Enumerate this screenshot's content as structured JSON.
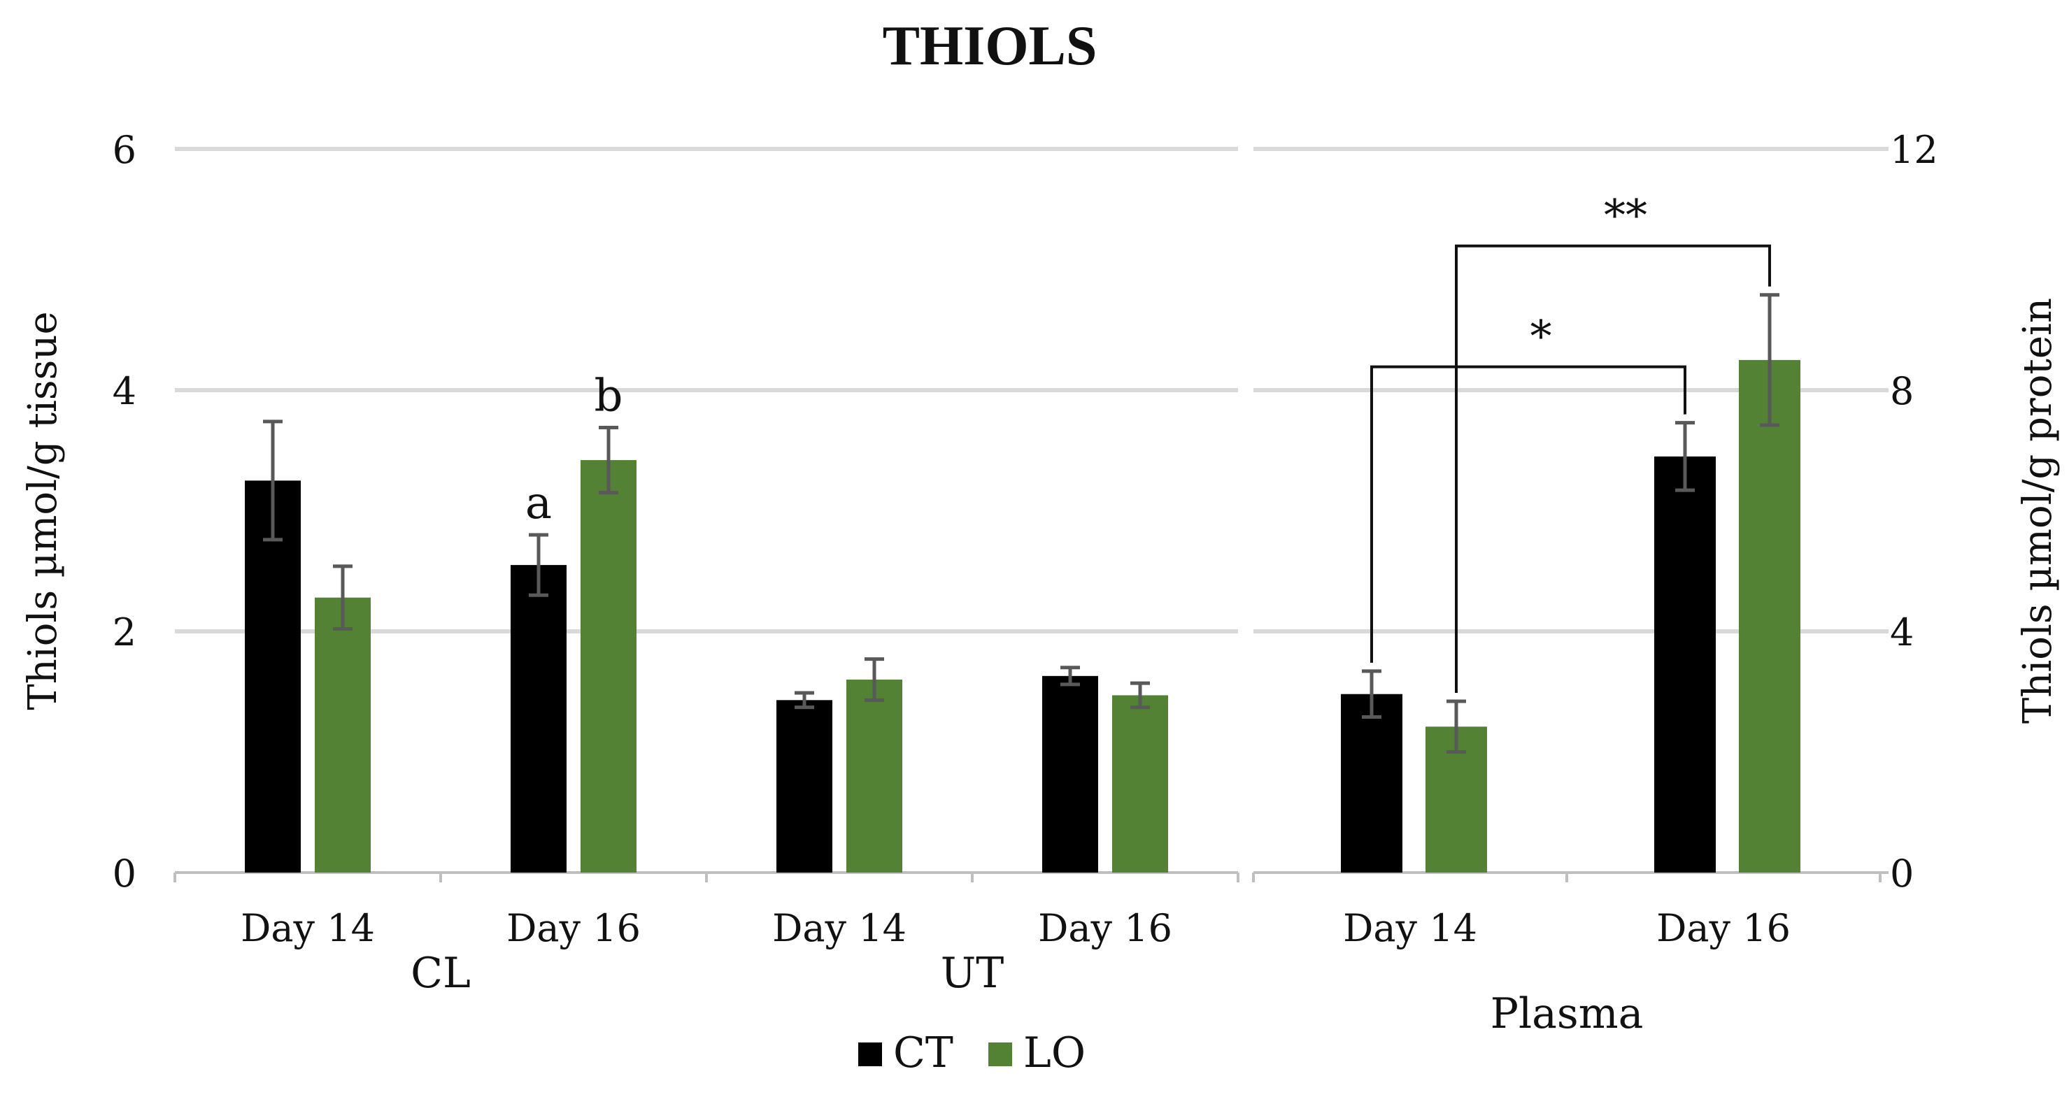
{
  "chart_data": {
    "type": "bar",
    "title": "THIOLS",
    "legend": {
      "position": "bottom-center",
      "entries": [
        {
          "name": "CT",
          "color": "#000000"
        },
        {
          "name": "LO",
          "color": "#548235"
        }
      ]
    },
    "grid": true,
    "colors": {
      "CT": "#000000",
      "LO": "#548235",
      "error_bar": "#595959",
      "grid": "#d9d9d9",
      "axis": "#bfbfbf"
    },
    "panels": [
      {
        "axis": "left",
        "ylabel": "Thiols µmol/g tissue",
        "ylim": [
          0,
          6
        ],
        "yticks": [
          0,
          2,
          4,
          6
        ],
        "groups": [
          {
            "name": "CL",
            "categories": [
              "Day 14",
              "Day 16"
            ]
          },
          {
            "name": "UT",
            "categories": [
              "Day 14",
              "Day 16"
            ]
          }
        ],
        "categories": [
          "Day 14",
          "Day 16",
          "Day 14",
          "Day 16"
        ],
        "series": [
          {
            "name": "CT",
            "values": [
              3.25,
              2.55,
              1.43,
              1.63
            ],
            "errors": [
              0.49,
              0.25,
              0.06,
              0.07
            ]
          },
          {
            "name": "LO",
            "values": [
              2.28,
              3.42,
              1.6,
              1.47
            ],
            "errors": [
              0.26,
              0.27,
              0.17,
              0.1
            ]
          }
        ],
        "annotations": [
          {
            "text": "a",
            "category_index": 1,
            "series": "CT"
          },
          {
            "text": "b",
            "category_index": 1,
            "series": "LO"
          }
        ]
      },
      {
        "axis": "right",
        "ylabel": "Thiols µmol/g protein",
        "ylim": [
          0,
          12
        ],
        "yticks": [
          0,
          4,
          8,
          12
        ],
        "groups": [
          {
            "name": "Plasma",
            "categories": [
              "Day 14",
              "Day 16"
            ]
          }
        ],
        "categories": [
          "Day 14",
          "Day 16"
        ],
        "series": [
          {
            "name": "CT",
            "values": [
              2.96,
              6.9
            ],
            "errors": [
              0.38,
              0.56
            ]
          },
          {
            "name": "LO",
            "values": [
              2.42,
              8.5
            ],
            "errors": [
              0.42,
              1.08
            ]
          }
        ],
        "significance": [
          {
            "label": "*",
            "from": {
              "category_index": 0,
              "series": "CT"
            },
            "to": {
              "category_index": 1,
              "series": "CT"
            }
          },
          {
            "label": "**",
            "from": {
              "category_index": 0,
              "series": "LO"
            },
            "to": {
              "category_index": 1,
              "series": "LO"
            }
          }
        ]
      }
    ]
  }
}
